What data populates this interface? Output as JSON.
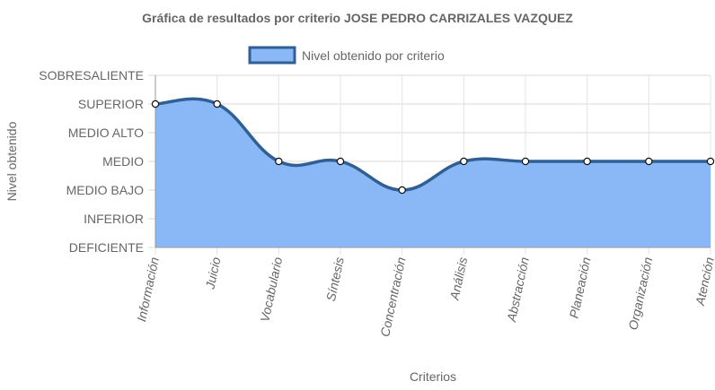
{
  "chart_data": {
    "type": "line",
    "title": "Gráfica de resultados por criterio JOSE PEDRO CARRIZALES VAZQUEZ",
    "xlabel": "Criterios",
    "ylabel": "Nivel obtenido",
    "levels": [
      "DEFICIENTE",
      "INFERIOR",
      "MEDIO BAJO",
      "MEDIO",
      "MEDIO ALTO",
      "SUPERIOR",
      "SOBRESALIENTE"
    ],
    "categories": [
      "Información",
      "Juicio",
      "Vocabulario",
      "Síntesis",
      "Concentración",
      "Análisis",
      "Abstracción",
      "Planeación",
      "Organización",
      "Atención"
    ],
    "series": [
      {
        "name": "Nivel obtenido por criterio",
        "values": [
          "SUPERIOR",
          "SUPERIOR",
          "MEDIO",
          "MEDIO",
          "MEDIO BAJO",
          "MEDIO",
          "MEDIO",
          "MEDIO",
          "MEDIO",
          "MEDIO"
        ],
        "fill_color": "#8ab8f7",
        "line_color": "#2f5f93"
      }
    ],
    "grid": true,
    "legend": "top-center",
    "filled": true
  }
}
